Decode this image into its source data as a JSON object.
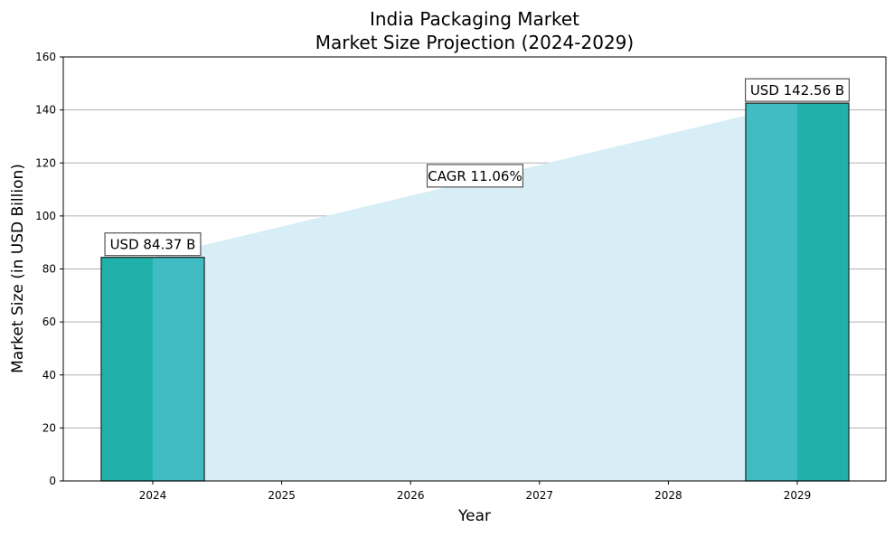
{
  "chart_data": {
    "type": "bar",
    "title": "India Packaging Market",
    "subtitle": "Market Size Projection (2024-2029)",
    "xlabel": "Year",
    "ylabel": "Market Size (in USD Billion)",
    "categories": [
      "2024",
      "2025",
      "2026",
      "2027",
      "2028",
      "2029"
    ],
    "bars": [
      {
        "year": 2024,
        "value": 84.37,
        "label": "USD 84.37 B"
      },
      {
        "year": 2029,
        "value": 142.56,
        "label": "USD 142.56 B"
      }
    ],
    "area": {
      "x": [
        2024,
        2029
      ],
      "y": [
        84.37,
        142.56
      ]
    },
    "cagr_label": "CAGR 11.06%",
    "cagr_anchor": {
      "year": 2026.5,
      "value": 115
    },
    "ylim": [
      0,
      160
    ],
    "yticks": [
      0,
      20,
      40,
      60,
      80,
      100,
      120,
      140,
      160
    ],
    "grid": "horizontal",
    "colors": {
      "bar_dark": "#20b2aa",
      "bar_light": "#40bcc2",
      "area": "#d8eef7",
      "grid": "#b0b0b0"
    }
  }
}
